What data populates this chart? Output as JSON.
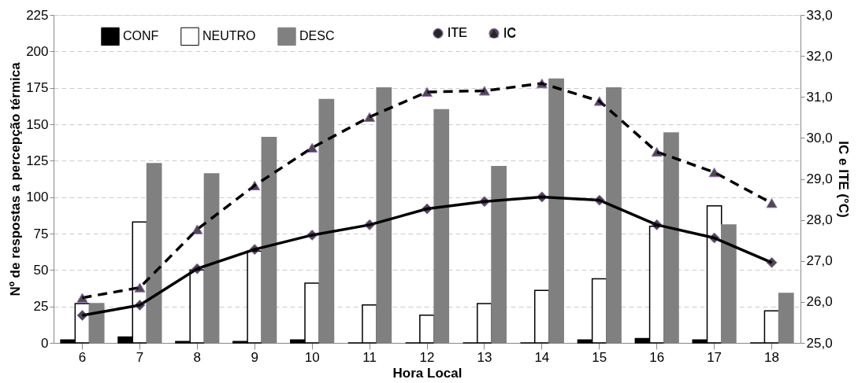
{
  "chart_data": {
    "type": "bar",
    "xlabel": "Hora Local",
    "ylabel": "Nº de respostas a percepção térmica",
    "y2label": "IC e ITE (°C)",
    "categories": [
      "6",
      "7",
      "8",
      "9",
      "10",
      "11",
      "12",
      "13",
      "14",
      "15",
      "16",
      "17",
      "18"
    ],
    "series": [
      {
        "name": "CONF",
        "type": "bar",
        "color": "#000000",
        "values": [
          2,
          4,
          1,
          1,
          2,
          0,
          0,
          0,
          0,
          2,
          3,
          2,
          0
        ]
      },
      {
        "name": "NEUTRO",
        "type": "bar",
        "color": "#ffffff",
        "values": [
          27,
          83,
          50,
          63,
          41,
          26,
          19,
          27,
          36,
          44,
          80,
          94,
          22
        ]
      },
      {
        "name": "DESC",
        "type": "bar",
        "color": "#808080",
        "values": [
          27,
          123,
          116,
          141,
          167,
          175,
          160,
          121,
          181,
          175,
          144,
          81,
          34
        ]
      },
      {
        "name": "ITE",
        "type": "line",
        "axis": "y2",
        "color": "#000000",
        "marker": "diamond",
        "line_style": "solid",
        "values": [
          25.67,
          25.92,
          26.81,
          27.28,
          27.63,
          27.88,
          28.27,
          28.45,
          28.56,
          28.48,
          27.88,
          27.56,
          26.96
        ]
      },
      {
        "name": "IC",
        "type": "line",
        "axis": "y2",
        "color": "#000000",
        "marker": "triangle",
        "line_style": "dashed",
        "values": [
          26.1,
          26.35,
          27.77,
          28.84,
          29.76,
          30.51,
          31.12,
          31.15,
          31.33,
          30.9,
          29.66,
          29.16,
          28.41
        ]
      }
    ],
    "ylim": [
      0,
      225
    ],
    "yticks": [
      0,
      25,
      50,
      75,
      100,
      125,
      150,
      175,
      200,
      225
    ],
    "y2lim": [
      25,
      33
    ],
    "y2ticks": [
      {
        "value": 25,
        "label": "25,0"
      },
      {
        "value": 26,
        "label": "26,0"
      },
      {
        "value": 27,
        "label": "27,0"
      },
      {
        "value": 28,
        "label": "28,0"
      },
      {
        "value": 29,
        "label": "29,0"
      },
      {
        "value": 30,
        "label": "30,0"
      },
      {
        "value": 31,
        "label": "31,0"
      },
      {
        "value": 32,
        "label": "32,0"
      },
      {
        "value": 33,
        "label": "33,0"
      }
    ],
    "grid": "y",
    "legend": "top"
  }
}
